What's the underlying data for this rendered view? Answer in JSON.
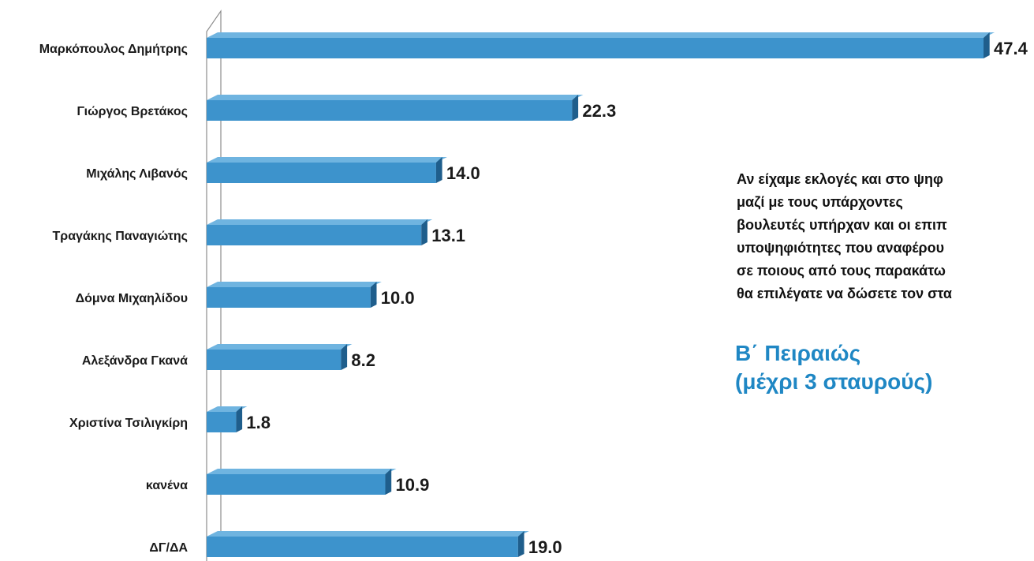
{
  "question_text": "Αν είχαμε εκλογές και στο ψηφ\nμαζί με τους υπάρχοντες\nβουλευτές υπήρχαν και οι επιπ\nυποψηφιότητες που αναφέρου\nσε ποιους από τους παρακάτω\nθα επιλέγατε να δώσετε τον στα",
  "subtitle_text": "Β΄ Πειραιώς\n(μέχρι 3 σταυρούς)",
  "colors": {
    "bar_front": "#3d93cc",
    "bar_top": "#6fb4e0",
    "bar_side": "#1f5e8c",
    "subtitle": "#1f87c4"
  },
  "chart_data": {
    "type": "bar",
    "orientation": "horizontal",
    "style": "3d",
    "categories": [
      "Μαρκόπουλος Δημήτρης",
      "Γιώργος Βρετάκος",
      "Μιχάλης Λιβανός",
      "Τραγάκης Παναγιώτης",
      "Δόμνα Μιχαηλίδου",
      "Αλεξάνδρα Γκανά",
      "Χριστίνα Τσιλιγκίρη",
      "κανένα",
      "ΔΓ/ΔΑ"
    ],
    "values": [
      47.4,
      22.3,
      14.0,
      13.1,
      10.0,
      8.2,
      1.8,
      10.9,
      19.0
    ],
    "value_labels": [
      "47.4",
      "22.3",
      "14.0",
      "13.1",
      "10.0",
      "8.2",
      "1.8",
      "10.9",
      "19.0"
    ],
    "xlim": [
      0,
      47.4
    ],
    "grid": false,
    "legend": "none"
  }
}
